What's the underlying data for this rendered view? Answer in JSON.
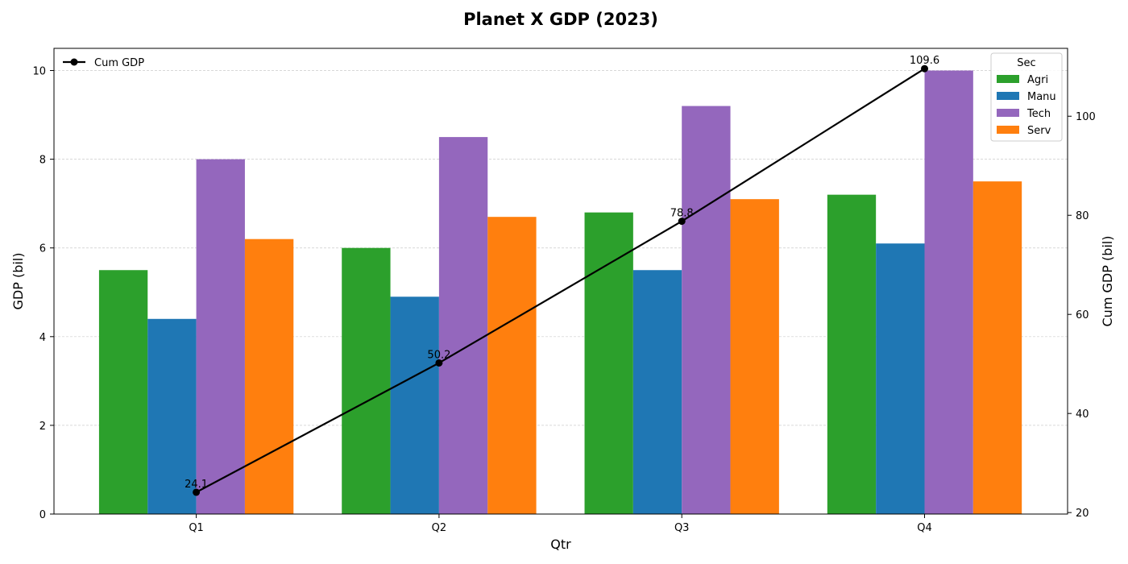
{
  "chart_data": {
    "type": "bar",
    "title": "Planet X GDP (2023)",
    "xlabel": "Qtr",
    "ylabel": "GDP (bil)",
    "y2label": "Cum GDP (bil)",
    "categories": [
      "Q1",
      "Q2",
      "Q3",
      "Q4"
    ],
    "ylim": [
      0,
      10.5
    ],
    "yticks": [
      0,
      2,
      4,
      6,
      8,
      10
    ],
    "y2lim": [
      19.7,
      113.7
    ],
    "y2ticks": [
      20,
      40,
      60,
      80,
      100
    ],
    "grid": true,
    "legend_title": "Sec",
    "legend_position": "top-right",
    "series": [
      {
        "name": "Agri",
        "color": "#2ca02c",
        "values": [
          5.5,
          6.0,
          6.8,
          7.2
        ]
      },
      {
        "name": "Manu",
        "color": "#1f77b4",
        "values": [
          4.4,
          4.9,
          5.5,
          6.1
        ]
      },
      {
        "name": "Tech",
        "color": "#9467bd",
        "values": [
          8.0,
          8.5,
          9.2,
          10.0
        ]
      },
      {
        "name": "Serv",
        "color": "#ff7f0e",
        "values": [
          6.2,
          6.7,
          7.1,
          7.5
        ]
      }
    ],
    "line_series": {
      "name": "Cum GDP",
      "color": "#000000",
      "axis": "right",
      "legend_position": "top-left",
      "values": [
        24.1,
        50.2,
        78.8,
        109.6
      ],
      "labels": [
        "24.1",
        "50.2",
        "78.8",
        "109.6"
      ]
    }
  }
}
